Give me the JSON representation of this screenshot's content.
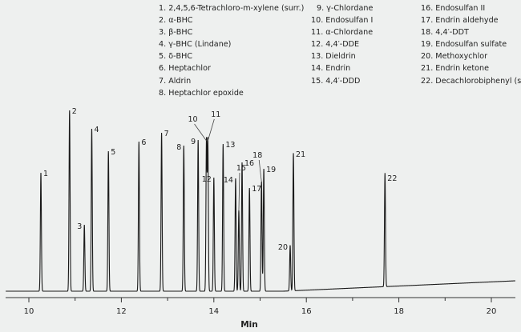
{
  "chart_data": {
    "type": "line",
    "title": "",
    "xlabel": "Min",
    "ylabel": "",
    "xlim": [
      9.5,
      20.52
    ],
    "x_ticks": [
      10,
      11,
      12,
      13,
      14,
      15,
      16,
      17,
      18,
      19,
      20
    ],
    "x_tick_labels": [
      "10",
      "12",
      "14",
      "16",
      "18",
      "20"
    ],
    "grid": false,
    "y_axis_shown": false,
    "line_color": "#1a1a1a",
    "intensity_units": "relative (arbitrary)",
    "baseline": {
      "start": 0,
      "end": 13
    },
    "peaks": [
      {
        "id": "1",
        "rt": 10.26,
        "height": 148
      },
      {
        "id": "2",
        "rt": 10.88,
        "height": 226
      },
      {
        "id": "3",
        "rt": 11.2,
        "height": 83
      },
      {
        "id": "4",
        "rt": 11.36,
        "height": 203
      },
      {
        "id": "5",
        "rt": 11.72,
        "height": 175
      },
      {
        "id": "6",
        "rt": 12.38,
        "height": 187
      },
      {
        "id": "7",
        "rt": 12.87,
        "height": 198
      },
      {
        "id": "8",
        "rt": 13.35,
        "height": 182
      },
      {
        "id": "9",
        "rt": 13.66,
        "height": 189
      },
      {
        "id": "10",
        "rt": 13.84,
        "height": 188
      },
      {
        "id": "11",
        "rt": 13.87,
        "height": 188
      },
      {
        "id": "12",
        "rt": 14.0,
        "height": 142
      },
      {
        "id": "13",
        "rt": 14.2,
        "height": 184
      },
      {
        "id": "14",
        "rt": 14.47,
        "height": 141
      },
      {
        "id": "15",
        "rt": 14.54,
        "height": 101
      },
      {
        "id": "16",
        "rt": 14.61,
        "height": 161
      },
      {
        "id": "17",
        "rt": 14.77,
        "height": 129
      },
      {
        "id": "18",
        "rt": 15.03,
        "height": 137
      },
      {
        "id": "19",
        "rt": 15.08,
        "height": 153
      },
      {
        "id": "20",
        "rt": 15.65,
        "height": 57
      },
      {
        "id": "21",
        "rt": 15.72,
        "height": 172
      },
      {
        "id": "22",
        "rt": 17.7,
        "height": 142
      }
    ],
    "legend": {
      "placement": "top-right",
      "columns": [
        [
          "1. 2,4,5,6-Tetrachloro-m-xylene (surr.)",
          "2. α-BHC",
          "3. β-BHC",
          "4. γ-BHC (Lindane)",
          "5. δ-BHC",
          "6. Heptachlor",
          "7. Aldrin",
          "8. Heptachlor epoxide"
        ],
        [
          "9. γ-Chlordane",
          "10. Endosulfan I",
          "11. α-Chlordane",
          "12. 4,4′-DDE",
          "13. Dieldrin",
          "14. Endrin",
          "15. 4,4′-DDD"
        ],
        [
          "16. Endosulfan II",
          "17. Endrin aldehyde",
          "18. 4,4′-DDT",
          "19. Endosulfan sulfate",
          "20. Methoxychlor",
          "21. Endrin ketone",
          "22. Decachlorobiphenyl (surr.)"
        ]
      ]
    }
  }
}
